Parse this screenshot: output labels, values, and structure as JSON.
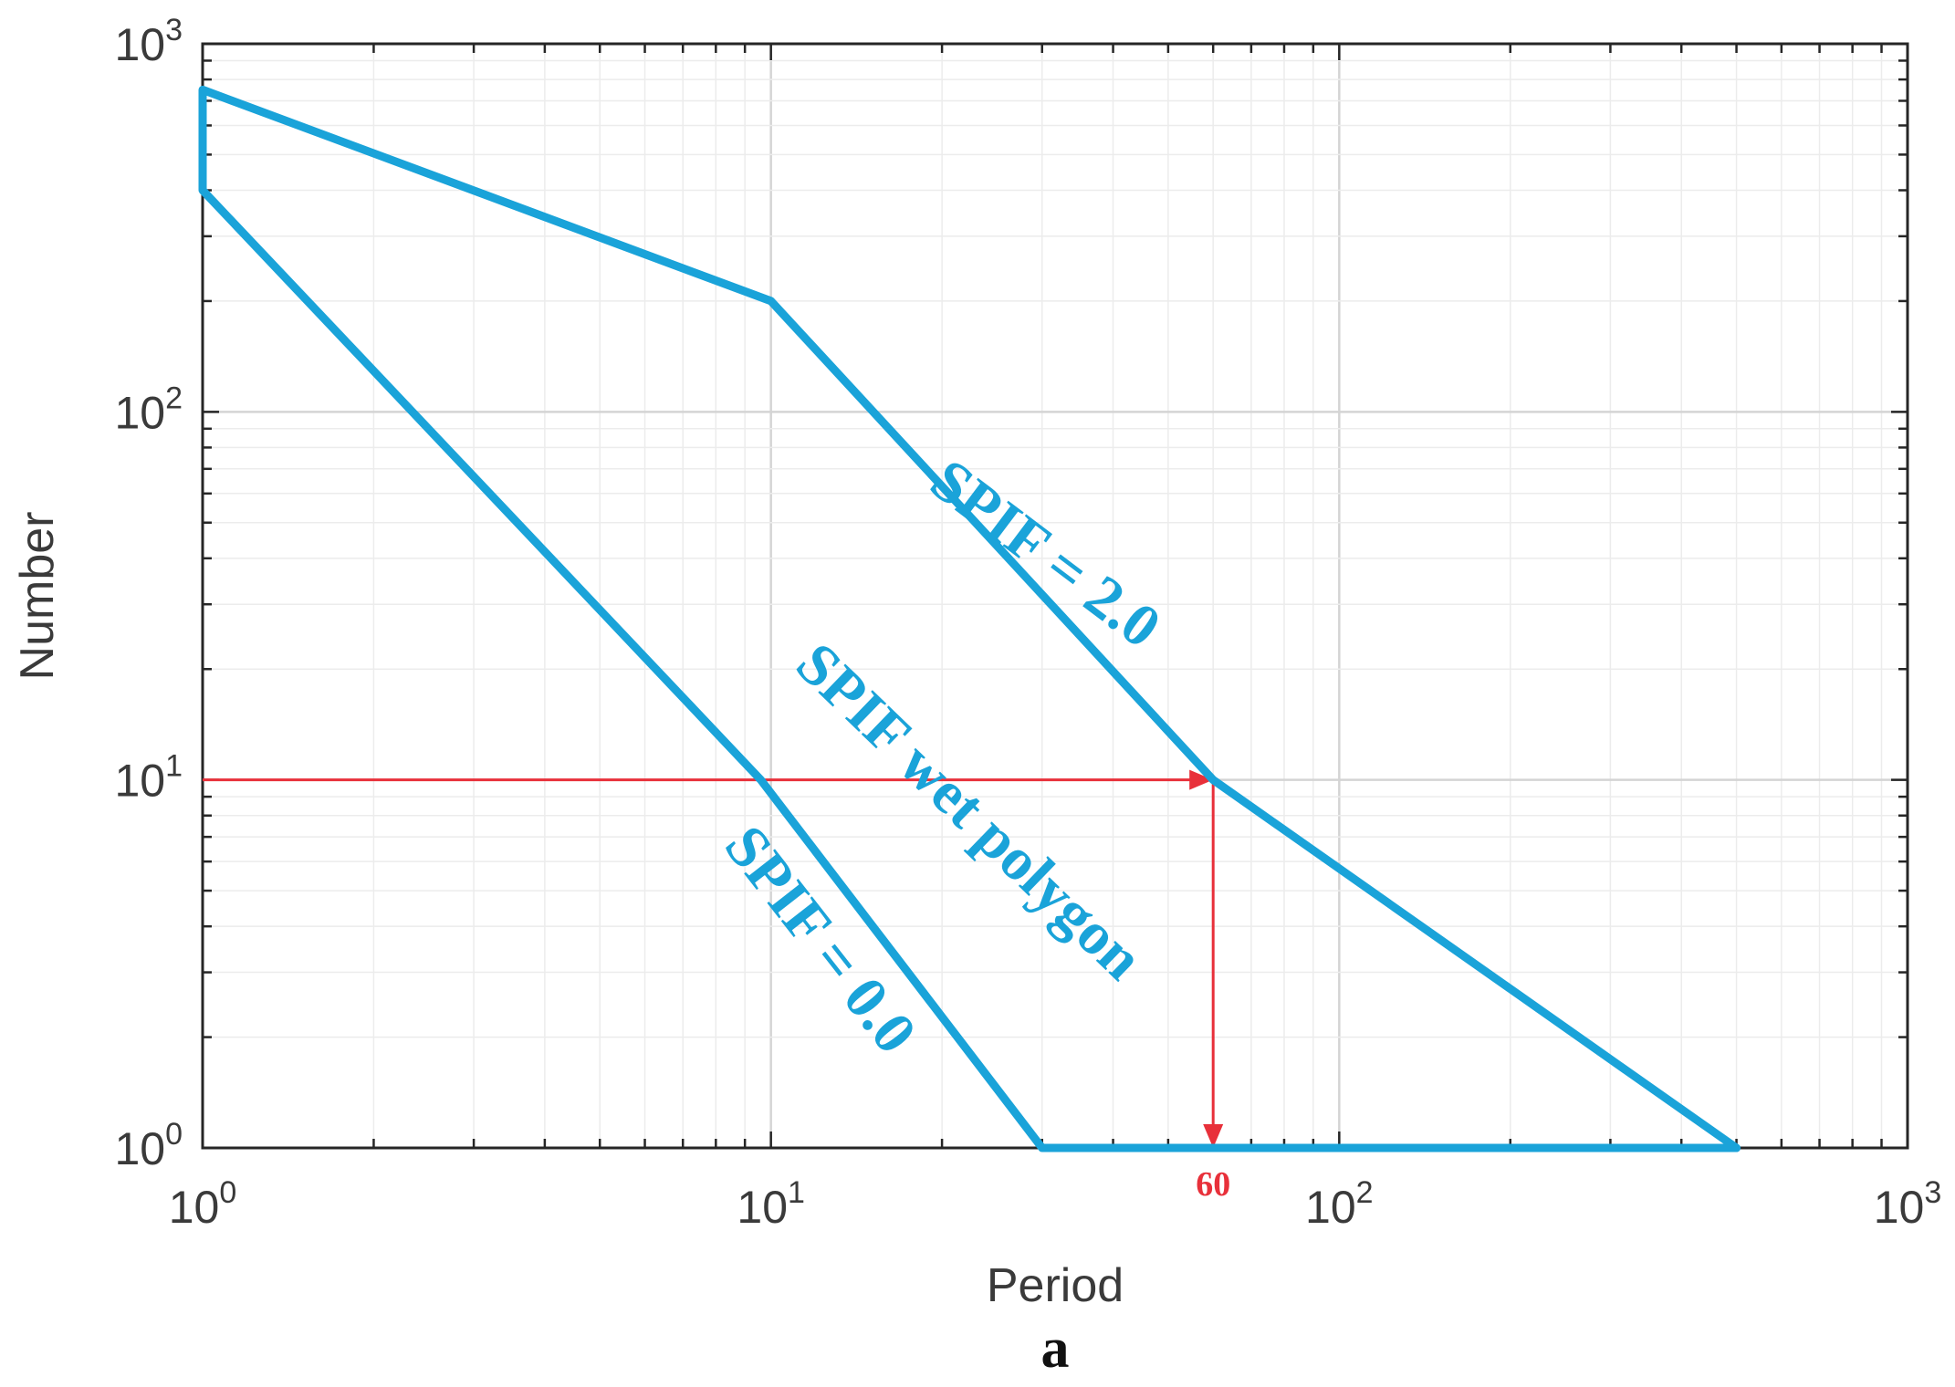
{
  "chart_data": {
    "type": "line",
    "title": "",
    "xlabel": "Period",
    "ylabel": "Number",
    "panel_label": "a",
    "x_scale": "log",
    "y_scale": "log",
    "xlim": [
      1,
      1000
    ],
    "ylim": [
      1,
      1000
    ],
    "x_ticks": [
      {
        "base": "10",
        "exp": "0"
      },
      {
        "base": "10",
        "exp": "1"
      },
      {
        "base": "10",
        "exp": "2"
      },
      {
        "base": "10",
        "exp": "3"
      }
    ],
    "y_ticks": [
      {
        "base": "10",
        "exp": "0"
      },
      {
        "base": "10",
        "exp": "1"
      },
      {
        "base": "10",
        "exp": "2"
      },
      {
        "base": "10",
        "exp": "3"
      }
    ],
    "grid": true,
    "series_color": "#1aa3d9",
    "annotation_color": "#e8303a",
    "polygon": {
      "points": [
        {
          "x": 1,
          "y": 750
        },
        {
          "x": 10,
          "y": 200
        },
        {
          "x": 60,
          "y": 10
        },
        {
          "x": 500,
          "y": 1
        },
        {
          "x": 30,
          "y": 1
        },
        {
          "x": 9.6,
          "y": 10
        },
        {
          "x": 1,
          "y": 400
        }
      ]
    },
    "labels": [
      {
        "text": "SPIF = 2.0",
        "x": 30,
        "y": 40,
        "angle": 37
      },
      {
        "text": "SPIF wet polygon",
        "x": 22,
        "y": 8,
        "angle": 44
      },
      {
        "text": "SPIF = 0.0",
        "x": 12,
        "y": 3.6,
        "angle": 52
      }
    ],
    "reference": {
      "y_level": 10,
      "x_value": 60,
      "x_value_label": "60"
    }
  }
}
